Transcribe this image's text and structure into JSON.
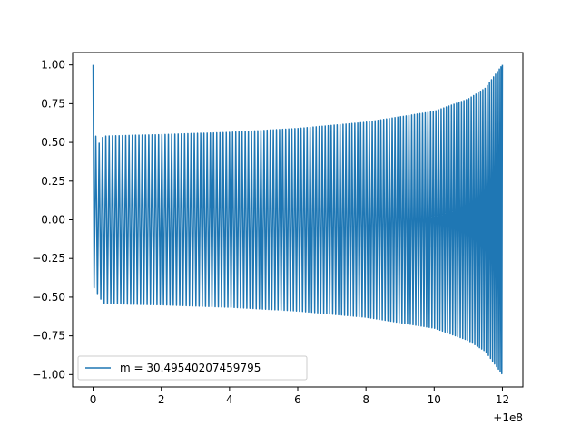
{
  "chart_data": {
    "type": "line",
    "title": "",
    "xlabel": "",
    "ylabel": "",
    "x_offset_label": "+1e8",
    "xlim": [
      -0.6,
      12.6
    ],
    "ylim": [
      -1.08,
      1.08
    ],
    "xticks": [
      0,
      2,
      4,
      6,
      8,
      10,
      12
    ],
    "xtick_labels": [
      "0",
      "2",
      "4",
      "6",
      "8",
      "10",
      "12"
    ],
    "yticks": [
      -1.0,
      -0.75,
      -0.5,
      -0.25,
      0.0,
      0.25,
      0.5,
      0.75,
      1.0
    ],
    "ytick_labels": [
      "−1.00",
      "−0.75",
      "−0.50",
      "−0.25",
      "0.00",
      "0.25",
      "0.50",
      "0.75",
      "1.00"
    ],
    "grid": false,
    "legend_position": "lower-left",
    "series": [
      {
        "name": "m = 30.49540207459795",
        "color": "#1f77b4",
        "description_points": {
          "x": [
            0.0,
            0.03,
            0.3,
            1.0,
            2.0,
            4.0,
            6.0,
            8.0,
            10.0,
            11.0,
            11.5,
            12.0
          ],
          "envelope": [
            1.0,
            0.44,
            0.54,
            0.545,
            0.55,
            0.565,
            0.59,
            0.63,
            0.7,
            0.78,
            0.85,
            1.0
          ]
        },
        "oscillations": 140
      }
    ]
  }
}
